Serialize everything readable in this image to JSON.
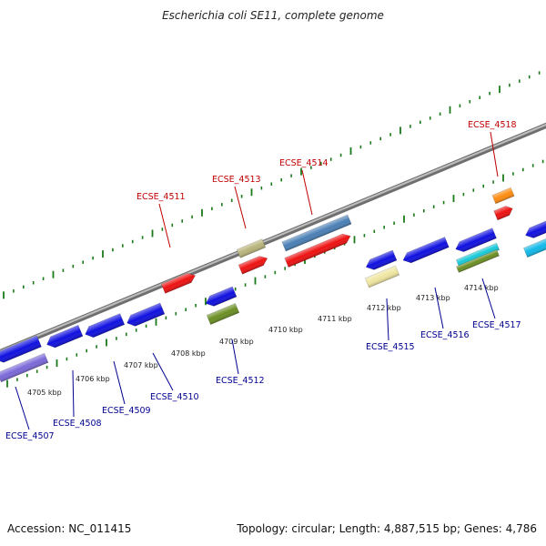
{
  "title": "Escherichia coli SE11, complete genome",
  "footer": {
    "accession": "Accession: NC_011415",
    "summary": "Topology: circular; Length: 4,887,515 bp; Genes: 4,786"
  },
  "colors": {
    "label_top": "#c00000",
    "label_bottom": "#000090",
    "backbone": "#8c8c8c",
    "tick": "#1a7a1a"
  },
  "scale": {
    "unit": "kbp",
    "labels": [
      "4705 kbp",
      "4706 kbp",
      "4707 kbp",
      "4708 kbp",
      "4709 kbp",
      "4710 kbp",
      "4711 kbp",
      "4712 kbp",
      "4713 kbp",
      "4714 kbp"
    ]
  },
  "gene_labels": [
    {
      "id": "g4507",
      "name": "ECSE_4507",
      "strand": "minus"
    },
    {
      "id": "g4508",
      "name": "ECSE_4508",
      "strand": "minus"
    },
    {
      "id": "g4509",
      "name": "ECSE_4509",
      "strand": "minus"
    },
    {
      "id": "g4510",
      "name": "ECSE_4510",
      "strand": "minus"
    },
    {
      "id": "g4511",
      "name": "ECSE_4511",
      "strand": "plus"
    },
    {
      "id": "g4512",
      "name": "ECSE_4512",
      "strand": "minus"
    },
    {
      "id": "g4513",
      "name": "ECSE_4513",
      "strand": "plus"
    },
    {
      "id": "g4514",
      "name": "ECSE_4514",
      "strand": "plus"
    },
    {
      "id": "g4515",
      "name": "ECSE_4515",
      "strand": "minus"
    },
    {
      "id": "g4516",
      "name": "ECSE_4516",
      "strand": "minus"
    },
    {
      "id": "g4517",
      "name": "ECSE_4517",
      "strand": "minus"
    },
    {
      "id": "g4518",
      "name": "ECSE_4518",
      "strand": "plus"
    }
  ]
}
